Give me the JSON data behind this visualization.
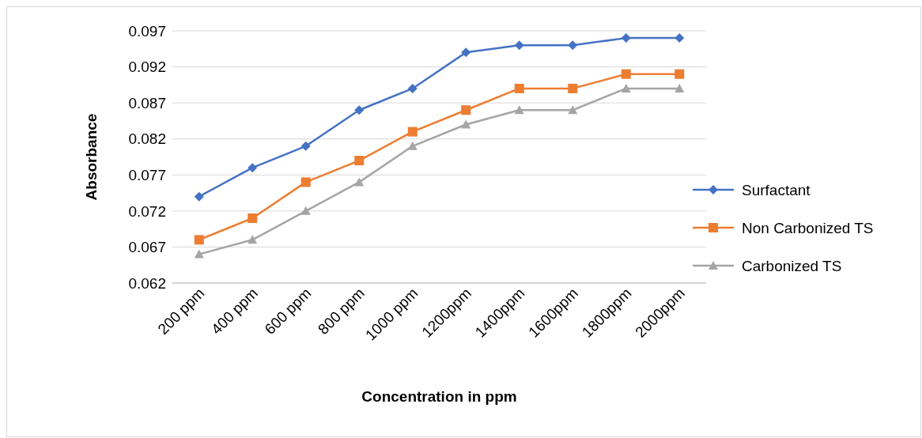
{
  "chart_data": {
    "type": "line",
    "xlabel": "Concentration in ppm",
    "ylabel": "Absorbance",
    "categories": [
      "200 ppm",
      "400 ppm",
      "600 ppm",
      "800 ppm",
      "1000 ppm",
      "1200ppm",
      "1400ppm",
      "1600ppm",
      "1800ppm",
      "2000ppm"
    ],
    "series": [
      {
        "name": "Surfactant",
        "color": "#4472c4",
        "marker": "diamond",
        "values": [
          0.074,
          0.078,
          0.081,
          0.086,
          0.089,
          0.094,
          0.095,
          0.095,
          0.096,
          0.096
        ]
      },
      {
        "name": "Non Carbonized TS",
        "color": "#ed7d31",
        "marker": "square",
        "values": [
          0.068,
          0.071,
          0.076,
          0.079,
          0.083,
          0.086,
          0.089,
          0.089,
          0.091,
          0.091
        ]
      },
      {
        "name": "Carbonized TS",
        "color": "#a5a5a5",
        "marker": "triangle",
        "values": [
          0.066,
          0.068,
          0.072,
          0.076,
          0.081,
          0.084,
          0.086,
          0.086,
          0.089,
          0.089
        ]
      }
    ],
    "ylim": [
      0.062,
      0.097
    ],
    "yticks": [
      0.062,
      0.067,
      0.072,
      0.077,
      0.082,
      0.087,
      0.092,
      0.097
    ],
    "grid": "y",
    "legend": "right"
  }
}
